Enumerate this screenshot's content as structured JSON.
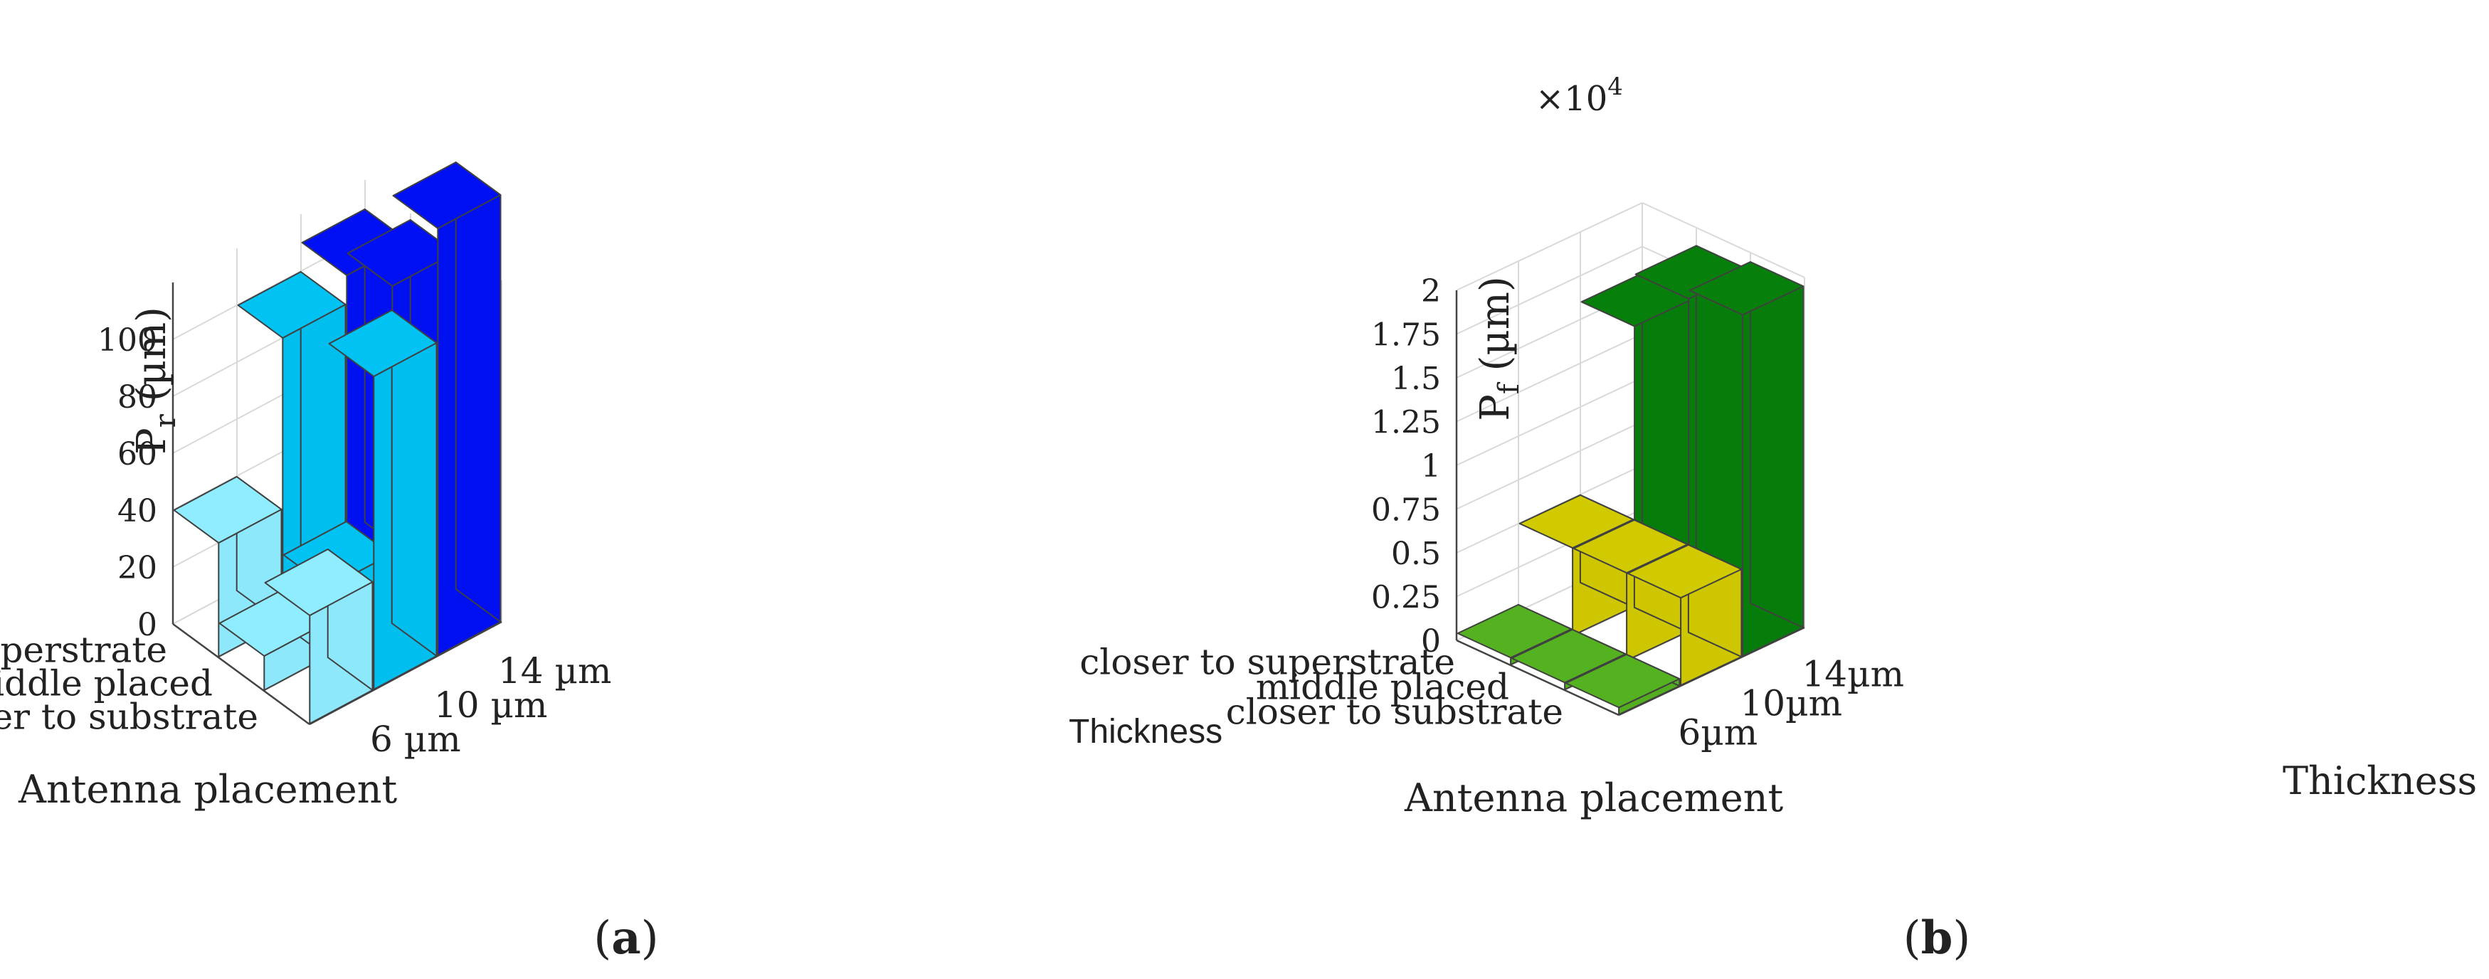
{
  "panels": [
    {
      "panel_label": "a",
      "chart_data": {
        "type": "bar3d",
        "zlabel": "P",
        "zlabel_sub": "r",
        "zlabel_unit": " (µm)",
        "zticks": [
          0,
          20,
          40,
          60,
          80,
          100
        ],
        "zlim": [
          0,
          120
        ],
        "x_title": "Antenna placement",
        "x_categories": [
          "closer to substrate",
          "middle placed",
          "closer to superstrate"
        ],
        "y_title": "Thickness",
        "y_categories": [
          "6 µm",
          "10 µm",
          "14 µm"
        ],
        "series": [
          {
            "name": "6 µm",
            "color": "#8de8fb",
            "values": [
              38,
              12,
              40
            ]
          },
          {
            "name": "10 µm",
            "color": "#00bfef",
            "values": [
              110,
              24,
              100
            ]
          },
          {
            "name": "14 µm",
            "color": "#0010f0",
            "values": [
              150,
              118,
              110
            ]
          }
        ]
      }
    },
    {
      "panel_label": "b",
      "chart_data": {
        "type": "bar3d",
        "multiplier_base": "×10",
        "multiplier_exp": "4",
        "zlabel": "P",
        "zlabel_sub": "f",
        "zlabel_unit": " (µm)",
        "zticks": [
          0,
          0.25,
          0.5,
          0.75,
          1,
          1.25,
          1.5,
          1.75,
          2
        ],
        "zlim": [
          0,
          2
        ],
        "x_title": "Antenna placement",
        "x_categories": [
          "closer to substrate",
          "middle placed",
          "closer to superstrate"
        ],
        "y_title": "Thickness",
        "y_categories": [
          "6µm",
          "10µm",
          "14µm"
        ],
        "series": [
          {
            "name": "6µm",
            "color": "#52ae1f",
            "values": [
              0.04,
              0.04,
              0.04
            ]
          },
          {
            "name": "10µm",
            "color": "#cdc600",
            "values": [
              0.5,
              0.5,
              0.5
            ]
          },
          {
            "name": "14µm",
            "color": "#067d0b",
            "values": [
              1.95,
              1.9,
              1.6
            ]
          }
        ]
      }
    }
  ]
}
